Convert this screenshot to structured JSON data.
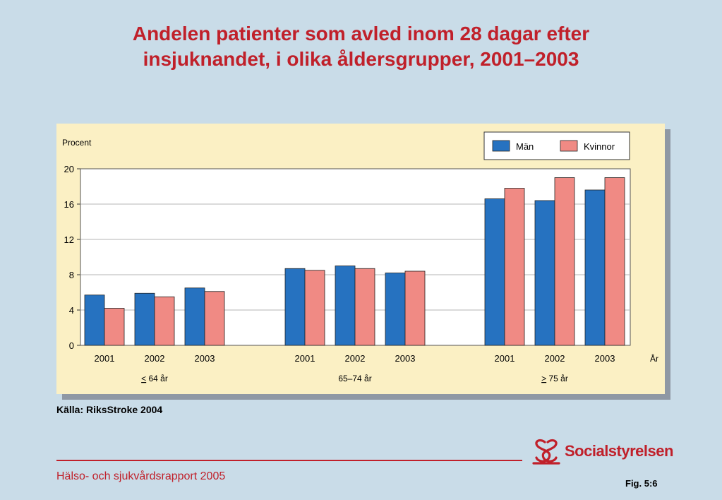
{
  "slide": {
    "title_line1": "Andelen patienter som avled inom 28 dagar efter",
    "title_line2": "insjuknandet, i olika åldersgrupper, 2001–2003",
    "source": "Källa: RiksStroke 2004",
    "footer_report": "Hälso- och sjukvårdsrapport 2005",
    "fig_label": "Fig. 5:6",
    "logo_text": "Socialstyrelsen",
    "accent_color": "#c0202a"
  },
  "chart_data": {
    "type": "bar",
    "ylabel": "Procent",
    "xlabel": "År",
    "ylim": [
      0,
      20
    ],
    "yticks": [
      0,
      4,
      8,
      12,
      16,
      20
    ],
    "grid": true,
    "legend_position": "top-right",
    "groups": [
      {
        "label": "≤ 64 år",
        "label_symbol": "<",
        "label_text": " 64 år",
        "categories": [
          "2001",
          "2002",
          "2003"
        ]
      },
      {
        "label": "65–74 år",
        "label_symbol": "",
        "label_text": "65–74 år",
        "categories": [
          "2001",
          "2002",
          "2003"
        ]
      },
      {
        "label": "≥ 75 år",
        "label_symbol": ">",
        "label_text": " 75 år",
        "categories": [
          "2001",
          "2002",
          "2003"
        ]
      }
    ],
    "series": [
      {
        "name": "Män",
        "color": "#2672c0",
        "values": [
          [
            5.7,
            5.9,
            6.5
          ],
          [
            8.7,
            9.0,
            8.2
          ],
          [
            16.6,
            16.4,
            17.6
          ]
        ]
      },
      {
        "name": "Kvinnor",
        "color": "#f08a84",
        "values": [
          [
            4.2,
            5.5,
            6.1
          ],
          [
            8.5,
            8.7,
            8.4
          ],
          [
            17.8,
            19.0,
            19.0
          ]
        ]
      }
    ]
  }
}
